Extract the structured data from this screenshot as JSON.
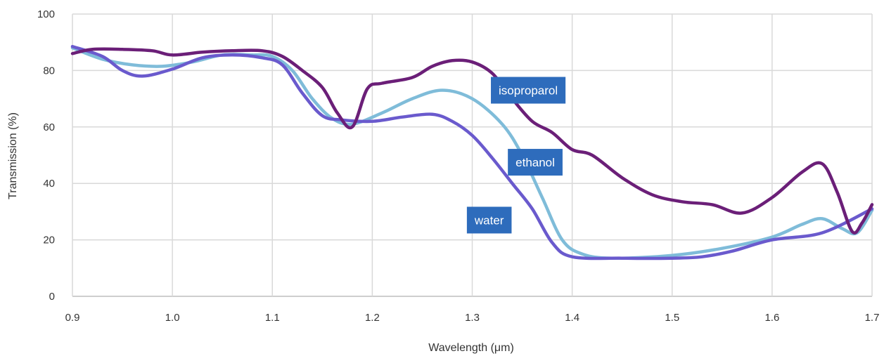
{
  "chart_data": {
    "type": "line",
    "title": "",
    "xlabel": "Wavelength (μm)",
    "ylabel": "Transmission (%)",
    "xlim": [
      0.9,
      1.7
    ],
    "ylim": [
      0,
      100
    ],
    "xticks": [
      "0.9",
      "1.0",
      "1.1",
      "1.2",
      "1.3",
      "1.4",
      "1.5",
      "1.6",
      "1.7"
    ],
    "yticks": [
      "0",
      "20",
      "40",
      "60",
      "80",
      "100"
    ],
    "grid": true,
    "legend": "inline labels",
    "series": [
      {
        "name": "isoproparol",
        "color": "#6b1f78",
        "x": [
          0.9,
          0.92,
          0.95,
          0.98,
          1.0,
          1.03,
          1.06,
          1.09,
          1.11,
          1.13,
          1.15,
          1.165,
          1.18,
          1.195,
          1.21,
          1.24,
          1.26,
          1.28,
          1.3,
          1.32,
          1.34,
          1.36,
          1.38,
          1.4,
          1.42,
          1.45,
          1.48,
          1.51,
          1.54,
          1.57,
          1.6,
          1.63,
          1.65,
          1.665,
          1.68,
          1.69,
          1.7
        ],
        "y": [
          86,
          87.5,
          87.5,
          87,
          85.5,
          86.5,
          87,
          87,
          85,
          80,
          74,
          65,
          60,
          73.5,
          75.5,
          77.5,
          81.5,
          83.5,
          83,
          79,
          70,
          62,
          58,
          52,
          50,
          42,
          36,
          33.5,
          32.5,
          29.5,
          35,
          44,
          47,
          37,
          23,
          26,
          32.5
        ]
      },
      {
        "name": "ethanol",
        "color": "#7fbcd9",
        "x": [
          0.9,
          0.93,
          0.96,
          0.99,
          1.02,
          1.05,
          1.08,
          1.1,
          1.12,
          1.14,
          1.16,
          1.18,
          1.21,
          1.24,
          1.27,
          1.3,
          1.33,
          1.35,
          1.37,
          1.39,
          1.41,
          1.44,
          1.5,
          1.55,
          1.6,
          1.63,
          1.65,
          1.67,
          1.685,
          1.7
        ],
        "y": [
          88,
          84,
          82,
          81.5,
          83,
          85.5,
          85.5,
          85,
          80,
          70,
          63,
          61,
          65,
          70,
          73,
          70,
          61,
          50,
          35,
          20,
          15,
          13.5,
          14.5,
          17,
          21,
          25.5,
          27.5,
          24,
          22.5,
          30.5
        ]
      },
      {
        "name": "water",
        "color": "#6a5acd",
        "x": [
          0.9,
          0.93,
          0.95,
          0.97,
          1.0,
          1.03,
          1.06,
          1.09,
          1.11,
          1.13,
          1.15,
          1.17,
          1.2,
          1.23,
          1.26,
          1.28,
          1.3,
          1.32,
          1.34,
          1.36,
          1.38,
          1.4,
          1.45,
          1.5,
          1.53,
          1.56,
          1.6,
          1.65,
          1.7
        ],
        "y": [
          88.5,
          85,
          80,
          78,
          80.5,
          84.5,
          85.5,
          84.5,
          82,
          72,
          64,
          62.5,
          62,
          63.5,
          64.5,
          62,
          57,
          49,
          40,
          31,
          19,
          14,
          13.5,
          13.5,
          14,
          16,
          20,
          22.5,
          31
        ]
      }
    ],
    "annotations": [
      {
        "text": "isoproparol",
        "x": 1.356,
        "y": 73,
        "color": "#2e6cbc"
      },
      {
        "text": "ethanol",
        "x": 1.363,
        "y": 47.5,
        "color": "#2e6cbc"
      },
      {
        "text": "water",
        "x": 1.317,
        "y": 27,
        "color": "#2e6cbc"
      }
    ]
  }
}
